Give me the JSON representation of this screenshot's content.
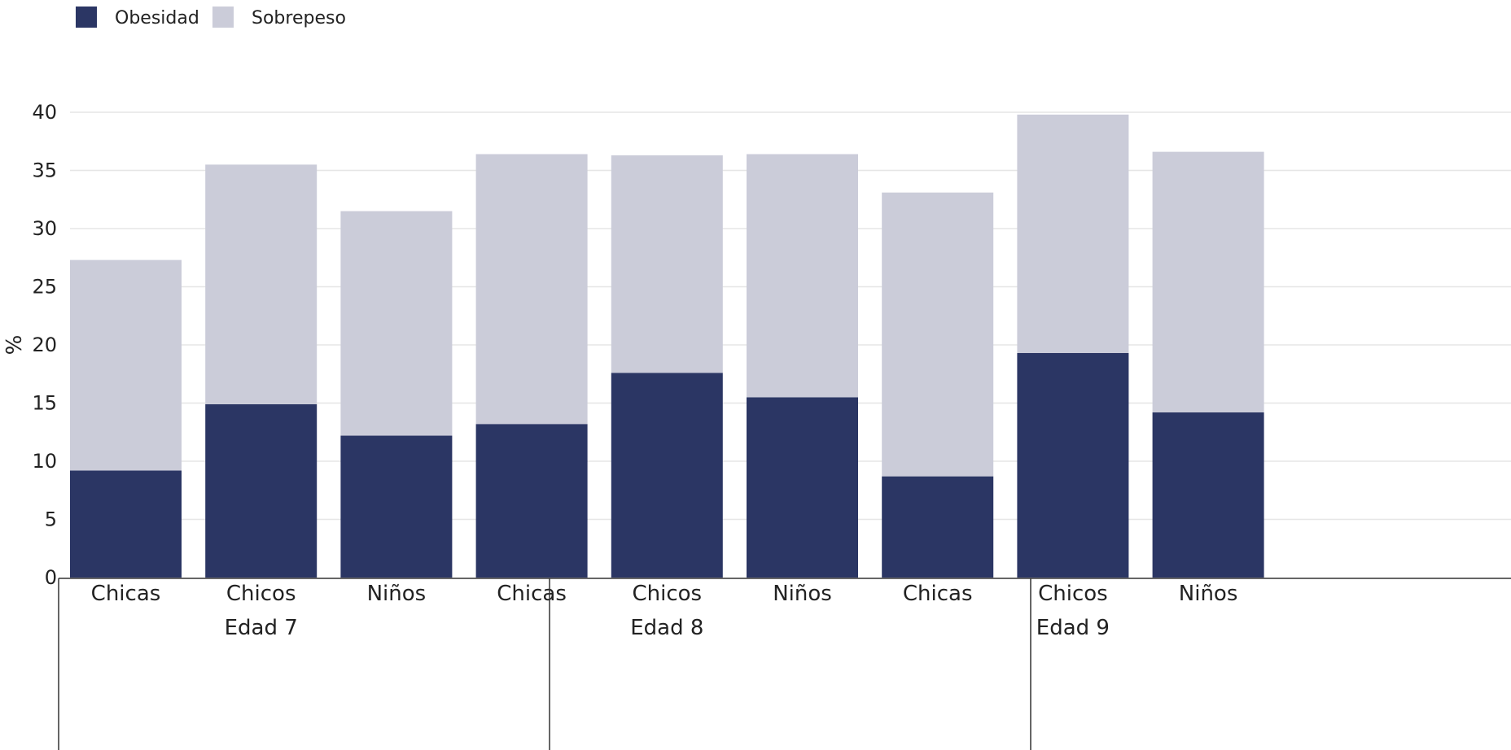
{
  "chart_data": {
    "type": "bar",
    "stacked": true,
    "ylabel": "%",
    "xlabel": "",
    "ylim": [
      0,
      40
    ],
    "yticks": [
      0,
      5,
      10,
      15,
      20,
      25,
      30,
      35,
      40
    ],
    "grid": true,
    "legend_position": "top-left",
    "groups": [
      {
        "label": "Edad 7",
        "categories": [
          "Chicas",
          "Chicos",
          "Niños"
        ]
      },
      {
        "label": "Edad 8",
        "categories": [
          "Chicas",
          "Chicos",
          "Niños"
        ]
      },
      {
        "label": "Edad 9",
        "categories": [
          "Chicas",
          "Chicos",
          "Niños"
        ]
      }
    ],
    "series": [
      {
        "name": "Obesidad",
        "color": "#2b3664",
        "values": [
          9.2,
          14.9,
          12.2,
          13.2,
          17.6,
          15.5,
          8.7,
          19.3,
          14.2
        ]
      },
      {
        "name": "Sobrepeso",
        "color": "#cbccd9",
        "values": [
          18.1,
          20.6,
          19.3,
          23.2,
          18.7,
          20.9,
          24.4,
          20.5,
          22.4
        ]
      }
    ]
  }
}
